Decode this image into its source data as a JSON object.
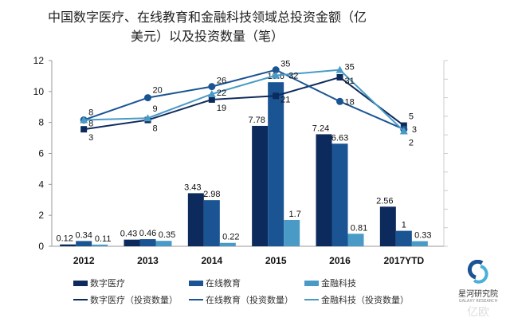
{
  "chart_data": {
    "type": "bar",
    "title": "中国数字医疗、在线教育和金融科技领域总投资金额（亿美元）以及投资数量（笔）",
    "categories": [
      "2012",
      "2013",
      "2014",
      "2015",
      "2016",
      "2017YTD"
    ],
    "ylim": [
      0,
      12
    ],
    "yticks": [
      0,
      2,
      4,
      6,
      8,
      10,
      12
    ],
    "y2lim": [
      -60,
      40
    ],
    "series": [
      {
        "name": "数字医疗",
        "type": "bar",
        "color": "#0d2a5c",
        "values": [
          0.12,
          0.43,
          3.43,
          7.78,
          7.24,
          2.56
        ]
      },
      {
        "name": "在线教育",
        "type": "bar",
        "color": "#1a5493",
        "values": [
          0.34,
          0.46,
          2.98,
          10.6,
          6.63,
          1
        ]
      },
      {
        "name": "金融科技",
        "type": "bar",
        "color": "#4a9ac6",
        "values": [
          0.11,
          0.35,
          0.22,
          1.7,
          0.81,
          0.33
        ]
      },
      {
        "name": "数字医疗（投资数量）",
        "type": "line",
        "axis": "right",
        "marker": "square",
        "color": "#0d2a5c",
        "values": [
          3,
          8,
          19,
          21,
          31,
          5
        ]
      },
      {
        "name": "在线教育（投资数量）",
        "type": "line",
        "axis": "right",
        "marker": "circle",
        "color": "#1a5493",
        "values": [
          8,
          20,
          26,
          35,
          18,
          3
        ]
      },
      {
        "name": "金融科技（投资数量）",
        "type": "line",
        "axis": "right",
        "marker": "triangle",
        "color": "#4a9ac6",
        "values": [
          8,
          9,
          22,
          32,
          35,
          2
        ]
      }
    ],
    "legend": "bottom"
  },
  "logo": {
    "name": "星河研究院",
    "sub": "GALAXY RESEARCH",
    "watermark": "亿欧"
  }
}
